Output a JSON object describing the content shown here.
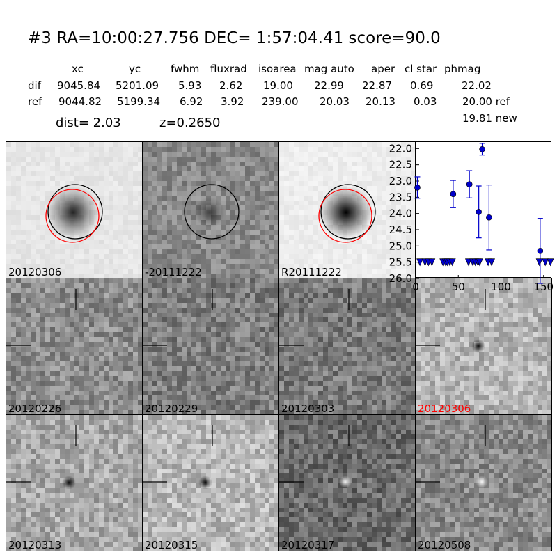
{
  "header": {
    "title": "#3   RA=10:00:27.756 DEC= 1:57:04.41      score=90.0",
    "columns": [
      "xc",
      "yc",
      "fwhm",
      "fluxrad",
      "isoarea",
      "mag auto",
      "aper",
      "cl star",
      "phmag"
    ],
    "rows": [
      {
        "label": "dif",
        "values": [
          "9045.84",
          "5201.09",
          "5.93",
          "2.62",
          "19.00",
          "22.99",
          "22.87",
          "0.69",
          "22.02"
        ]
      },
      {
        "label": "ref",
        "values": [
          "9044.82",
          "5199.34",
          "6.92",
          "3.92",
          "239.00",
          "20.03",
          "20.13",
          "0.03",
          "20.00 ref"
        ]
      }
    ],
    "phmag_new": "19.81 new",
    "dist_text": "dist=  2.03",
    "z_text": "z=0.2650"
  },
  "top_panels": [
    {
      "id": "new",
      "label": "20120306",
      "bg": "#e6e6e6",
      "blob": 0.85,
      "black_circle": true,
      "red_circle": true
    },
    {
      "id": "diff",
      "label": "-20111222",
      "bg": "#8a8a8a",
      "blob": 0.55,
      "black_circle": true,
      "red_circle": false
    },
    {
      "id": "ref",
      "label": "R20111222",
      "bg": "#ededed",
      "blob": 1.0,
      "black_circle": true,
      "red_circle": true
    }
  ],
  "stamps": [
    {
      "label": "20120226",
      "highlight": false,
      "bg": "#8c8c8c",
      "feature": "none"
    },
    {
      "label": "20120229",
      "highlight": false,
      "bg": "#7e7e7e",
      "feature": "none"
    },
    {
      "label": "20120303",
      "highlight": false,
      "bg": "#7a7a7a",
      "feature": "none"
    },
    {
      "label": "20120306",
      "highlight": true,
      "bg": "#b4b4b4",
      "feature": "dark"
    },
    {
      "label": "20120313",
      "highlight": false,
      "bg": "#a9a9a9",
      "feature": "dark"
    },
    {
      "label": "20120315",
      "highlight": false,
      "bg": "#b9b9b9",
      "feature": "dark"
    },
    {
      "label": "20120317",
      "highlight": false,
      "bg": "#6a6a6a",
      "feature": "bright"
    },
    {
      "label": "20120508",
      "highlight": false,
      "bg": "#8a8a8a",
      "feature": "bright"
    }
  ],
  "colors": {
    "highlight": "#ff0000",
    "series": "#0000cc",
    "red_circle": "#ff0000"
  },
  "chart_data": {
    "type": "scatter",
    "xlim": [
      0,
      160
    ],
    "ylim": [
      26.0,
      21.8
    ],
    "y_inverted": true,
    "x_ticks": [
      0,
      50,
      100,
      150
    ],
    "y_ticks": [
      "22.0",
      "22.5",
      "23.0",
      "23.5",
      "24.0",
      "24.5",
      "25.0",
      "25.5",
      "26.0"
    ],
    "detections": [
      {
        "x": 2,
        "y": 23.2,
        "err": 0.33
      },
      {
        "x": 44,
        "y": 23.4,
        "err": 0.42
      },
      {
        "x": 63,
        "y": 23.1,
        "err": 0.42
      },
      {
        "x": 74,
        "y": 23.95,
        "err": 0.8
      },
      {
        "x": 78,
        "y": 22.02,
        "err": 0.18
      },
      {
        "x": 86,
        "y": 24.12,
        "err": 1.0
      },
      {
        "x": 146,
        "y": 25.15,
        "err": 1.0
      }
    ],
    "upper_limits": {
      "y": 25.5,
      "x": [
        5,
        11,
        15,
        19,
        32,
        35,
        37,
        40,
        43,
        62,
        67,
        70,
        73,
        75,
        85,
        89,
        145,
        152,
        158
      ]
    }
  }
}
